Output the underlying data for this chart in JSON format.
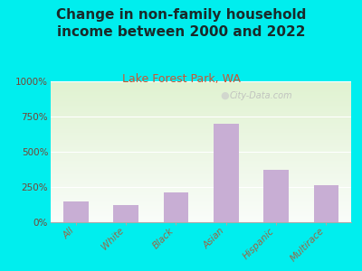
{
  "title": "Change in non-family household\nincome between 2000 and 2022",
  "subtitle": "Lake Forest Park, WA",
  "categories": [
    "All",
    "White",
    "Black",
    "Asian",
    "Hispanic",
    "Multirace"
  ],
  "values": [
    150,
    120,
    210,
    700,
    370,
    260
  ],
  "bar_color": "#c8aed4",
  "background_outer": "#00eeee",
  "background_plot_top_left": "#d8eec8",
  "background_plot_bottom_right": "#f0f5e8",
  "title_fontsize": 11,
  "subtitle_fontsize": 9,
  "subtitle_color": "#cc5533",
  "title_color": "#1a2a2a",
  "tick_label_color": "#996644",
  "ytick_label_color": "#774433",
  "ylim": [
    0,
    1000
  ],
  "yticks": [
    0,
    250,
    500,
    750,
    1000
  ],
  "ytick_labels": [
    "0%",
    "250%",
    "500%",
    "750%",
    "1000%"
  ],
  "watermark": "City-Data.com",
  "grid_color": "#ddddcc"
}
